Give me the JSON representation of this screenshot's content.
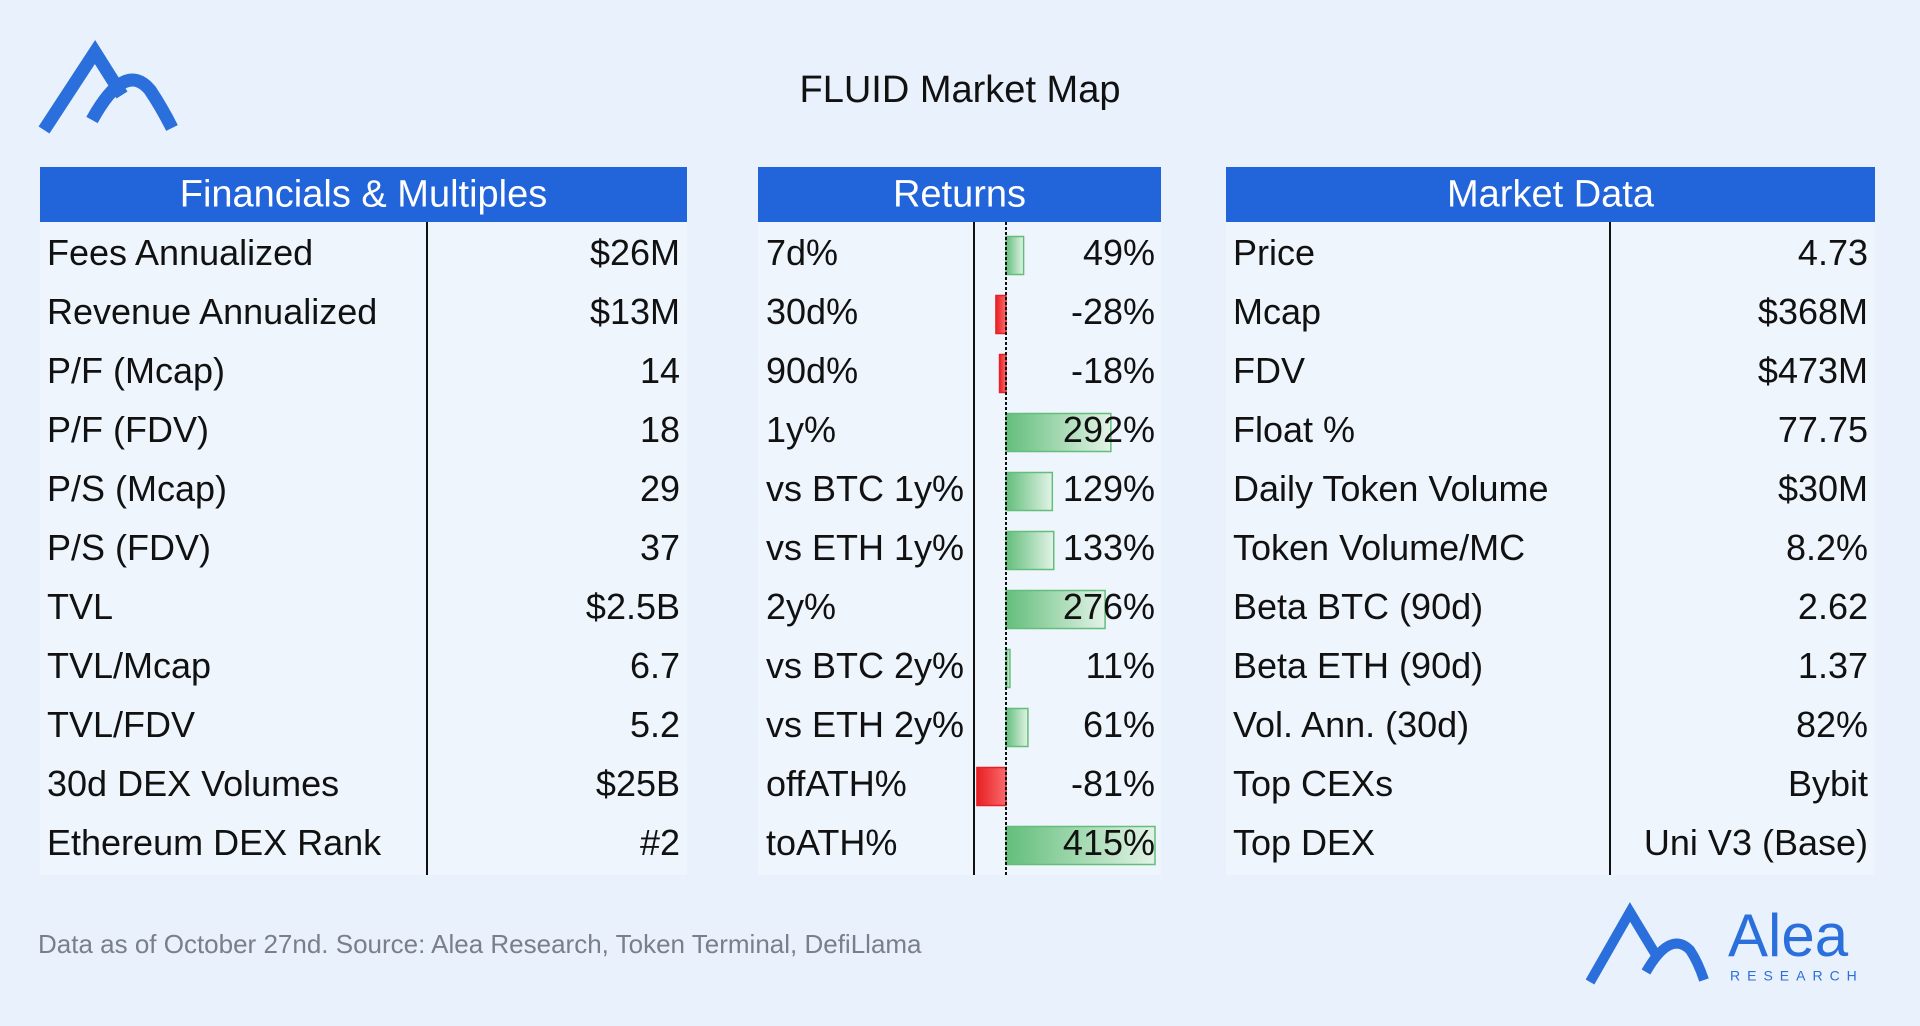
{
  "header": {
    "title": "FLUID Market Map"
  },
  "tables": [
    {
      "title": "Financials & Multiples",
      "rows": [
        [
          "Fees Annualized",
          "$26M"
        ],
        [
          "Revenue Annualized",
          "$13M"
        ],
        [
          "P/F (Mcap)",
          "14"
        ],
        [
          "P/F (FDV)",
          "18"
        ],
        [
          "P/S (Mcap)",
          "29"
        ],
        [
          "P/S (FDV)",
          "37"
        ],
        [
          "TVL",
          "$2.5B"
        ],
        [
          "TVL/Mcap",
          "6.7"
        ],
        [
          "TVL/FDV",
          "5.2"
        ],
        [
          "30d DEX Volumes",
          "$25B"
        ],
        [
          "Ethereum DEX Rank",
          "#2"
        ]
      ]
    },
    {
      "title": "Returns",
      "rows": [
        {
          "label": "7d%",
          "value": 49,
          "value_label": "49%"
        },
        {
          "label": "30d%",
          "value": -28,
          "value_label": "-28%"
        },
        {
          "label": "90d%",
          "value": -18,
          "value_label": "-18%"
        },
        {
          "label": "1y%",
          "value": 292,
          "value_label": "292%"
        },
        {
          "label": "vs BTC 1y%",
          "value": 129,
          "value_label": "129%"
        },
        {
          "label": "vs ETH 1y%",
          "value": 133,
          "value_label": "133%"
        },
        {
          "label": "2y%",
          "value": 276,
          "value_label": "276%"
        },
        {
          "label": "vs BTC 2y%",
          "value": 11,
          "value_label": "11%"
        },
        {
          "label": "vs ETH 2y%",
          "value": 61,
          "value_label": "61%"
        },
        {
          "label": "offATH%",
          "value": -81,
          "value_label": "-81%"
        },
        {
          "label": "toATH%",
          "value": 415,
          "value_label": "415%"
        }
      ]
    },
    {
      "title": "Market Data",
      "rows": [
        [
          "Price",
          "4.73"
        ],
        [
          "Mcap",
          "$368M"
        ],
        [
          "FDV",
          "$473M"
        ],
        [
          "Float %",
          "77.75"
        ],
        [
          "Daily Token Volume",
          "$30M"
        ],
        [
          "Token Volume/MC",
          "8.2%"
        ],
        [
          "Beta BTC (90d)",
          "2.62"
        ],
        [
          "Beta ETH (90d)",
          "1.37"
        ],
        [
          "Vol. Ann. (30d)",
          "82%"
        ],
        [
          "Top CEXs",
          "Bybit"
        ],
        [
          "Top DEX",
          "Uni V3 (Base)"
        ]
      ]
    }
  ],
  "footer": {
    "source": "Data as of October 27nd. Source: Alea Research, Token Terminal, DefiLlama",
    "brand": "Alea",
    "brand_sub": "RESEARCH"
  }
}
